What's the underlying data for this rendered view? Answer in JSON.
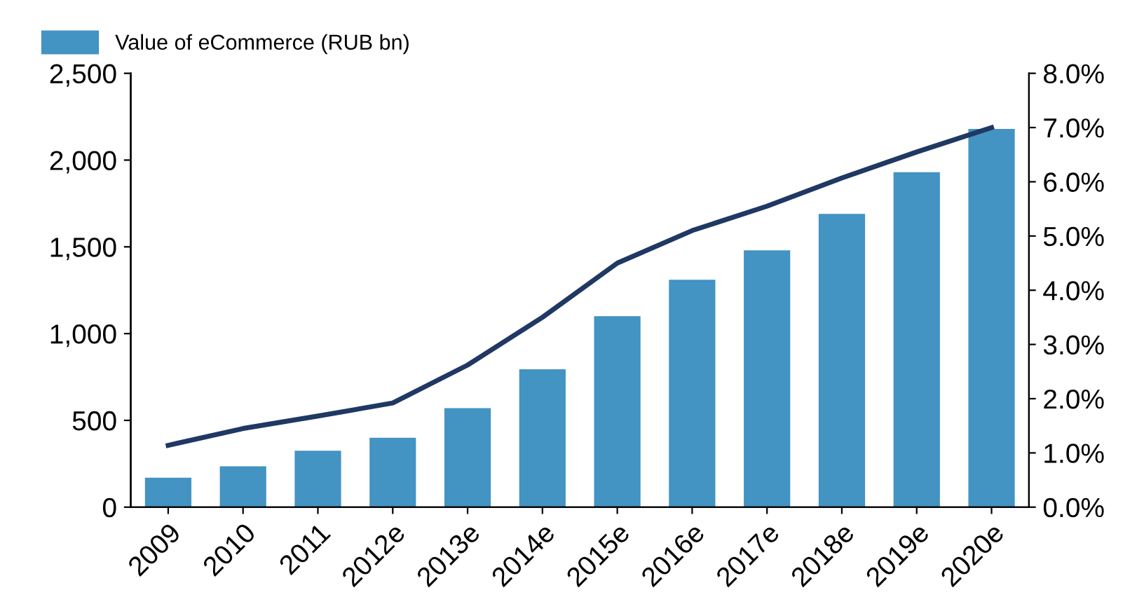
{
  "chart_data": {
    "type": "bar",
    "categories": [
      "2009",
      "2010",
      "2011",
      "2012e",
      "2013e",
      "2014e",
      "2015e",
      "2016e",
      "2017e",
      "2018e",
      "2019e",
      "2020e"
    ],
    "series": [
      {
        "name": "Value of eCommerce (RUB bn)",
        "color": "#4393c3",
        "values": [
          170,
          235,
          325,
          400,
          570,
          795,
          1100,
          1310,
          1480,
          1690,
          1930,
          2180
        ]
      },
      {
        "type": "line",
        "axis": "y2",
        "color": "#1f3864",
        "values": [
          1.14,
          1.45,
          1.68,
          1.92,
          2.62,
          3.5,
          4.5,
          5.1,
          5.55,
          6.07,
          6.55,
          7.0
        ]
      }
    ],
    "ylim": [
      0,
      2500
    ],
    "yticks": [
      {
        "value": 0,
        "label": "0"
      },
      {
        "value": 500,
        "label": "500"
      },
      {
        "value": 1000,
        "label": "1,000"
      },
      {
        "value": 1500,
        "label": "1,500"
      },
      {
        "value": 2000,
        "label": "2,000"
      },
      {
        "value": 2500,
        "label": "2,500"
      }
    ],
    "y2lim": [
      0,
      8
    ],
    "y2ticks": [
      {
        "value": 0,
        "label": "0.0%"
      },
      {
        "value": 1,
        "label": "1.0%"
      },
      {
        "value": 2,
        "label": "2.0%"
      },
      {
        "value": 3,
        "label": "3.0%"
      },
      {
        "value": 4,
        "label": "4.0%"
      },
      {
        "value": 5,
        "label": "5.0%"
      },
      {
        "value": 6,
        "label": "6.0%"
      },
      {
        "value": 7,
        "label": "7.0%"
      },
      {
        "value": 8,
        "label": "8.0%"
      }
    ],
    "legend": "top left",
    "grid": false
  }
}
